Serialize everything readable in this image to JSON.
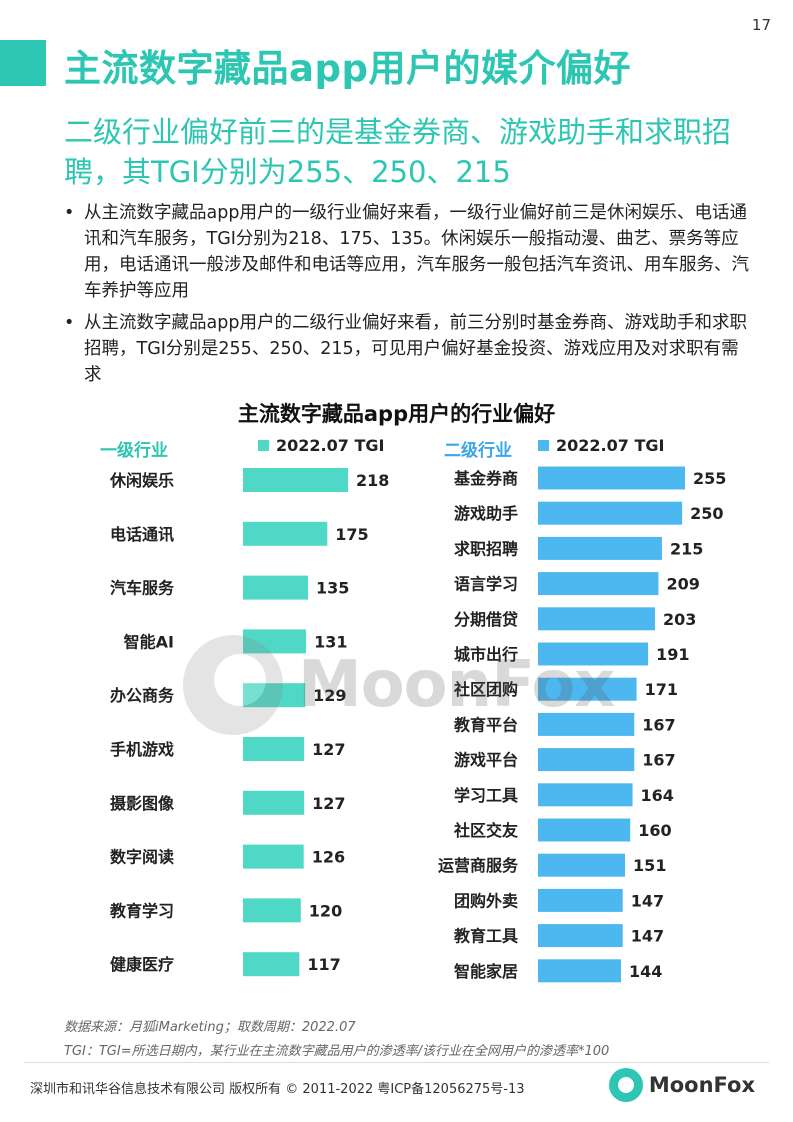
{
  "page": {
    "number": "17"
  },
  "header": {
    "title": "主流数字藏品app用户的媒介偏好",
    "subtitle": "二级行业偏好前三的是基金券商、游戏助手和求职招聘，其TGI分别为255、250、215"
  },
  "bullets": [
    "从主流数字藏品app用户的一级行业偏好来看，一级行业偏好前三是休闲娱乐、电话通讯和汽车服务，TGI分别为218、175、135。休闲娱乐一般指动漫、曲艺、票务等应用，电话通讯一般涉及邮件和电话等应用，汽车服务一般包括汽车资讯、用车服务、汽车养护等应用",
    "从主流数字藏品app用户的二级行业偏好来看，前三分别时基金券商、游戏助手和求职招聘，TGI分别是255、250、215，可见用户偏好基金投资、游戏应用及对求职有需求"
  ],
  "bullet_marker": "•",
  "watermark": {
    "text": "MoonFox"
  },
  "footer": {
    "source": "数据来源：月狐iMarketing；取数周期：2022.07",
    "note": "TGI：TGI=所选日期内，某行业在主流数字藏品用户的渗透率/该行业在全网用户的渗透率*100",
    "copyright": "深圳市和讯华谷信息技术有限公司 版权所有 © 2011-2022 粤ICP备12056275号-13",
    "logo_text": "MoonFox"
  },
  "colors": {
    "accent": "#2dc6b2",
    "bar_primary": "#4fd8c5",
    "bar_secondary": "#4db8f0",
    "label_secondary": "#3aa7e8"
  },
  "chart_data": {
    "type": "bar",
    "orientation": "horizontal",
    "title": "主流数字藏品app用户的行业偏好",
    "panels": [
      {
        "label": "一级行业",
        "series": [
          {
            "name": "2022.07 TGI",
            "color": "#4fd8c5"
          }
        ],
        "categories": [
          "休闲娱乐",
          "电话通讯",
          "汽车服务",
          "智能AI",
          "办公商务",
          "手机游戏",
          "摄影图像",
          "数字阅读",
          "教育学习",
          "健康医疗"
        ],
        "values": [
          218,
          175,
          135,
          131,
          129,
          127,
          127,
          126,
          120,
          117
        ]
      },
      {
        "label": "二级行业",
        "series": [
          {
            "name": "2022.07 TGI",
            "color": "#4db8f0"
          }
        ],
        "categories": [
          "基金券商",
          "游戏助手",
          "求职招聘",
          "语言学习",
          "分期借贷",
          "城市出行",
          "社区团购",
          "教育平台",
          "游戏平台",
          "学习工具",
          "社区交友",
          "运营商服务",
          "团购外卖",
          "教育工具",
          "智能家居"
        ],
        "values": [
          255,
          250,
          215,
          209,
          203,
          191,
          171,
          167,
          167,
          164,
          160,
          151,
          147,
          147,
          144
        ]
      }
    ]
  }
}
